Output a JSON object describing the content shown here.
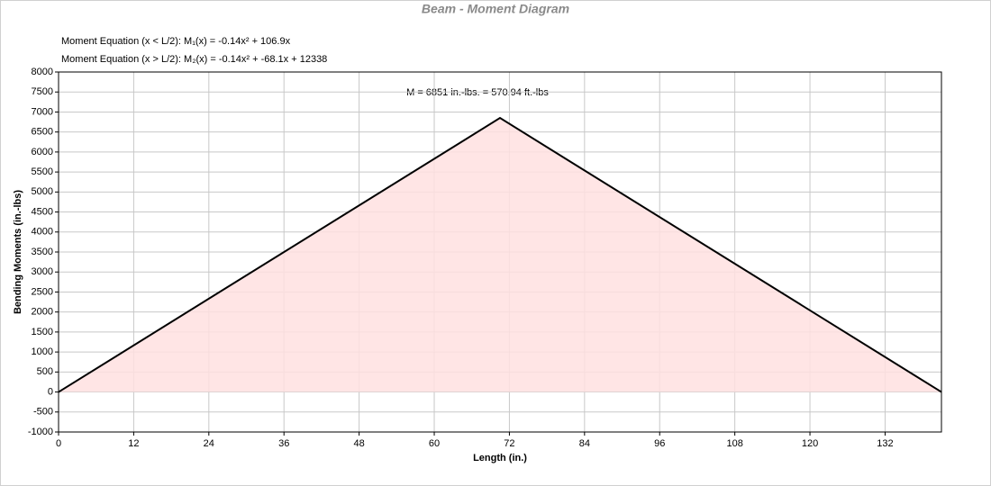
{
  "chart_data": {
    "type": "area",
    "title": "Beam - Moment Diagram",
    "annotations": [
      "Moment Equation (x < L/2):  M₁(x) = -0.14x² + 106.9x",
      "Moment Equation (x > L/2):  M₂(x) = -0.14x² + -68.1x + 12338",
      "M = 6851 in.-lbs. = 570.94 ft.-lbs"
    ],
    "x_label": "Length (in.)",
    "y_label": "Bending Moments (in.-lbs)",
    "x": [
      0,
      70.5,
      141
    ],
    "series": [
      {
        "color": "#000000",
        "fill": "#ffe0e0",
        "values": [
          0,
          6851,
          0
        ]
      }
    ],
    "xlim": [
      0,
      141
    ],
    "xticks": [
      0,
      12,
      24,
      36,
      48,
      60,
      72,
      84,
      96,
      108,
      120,
      132
    ],
    "ylim": [
      -1000,
      8000
    ],
    "yticks": [
      -1000,
      -500,
      0,
      500,
      1000,
      1500,
      2000,
      2500,
      3000,
      3500,
      4000,
      4500,
      5000,
      5500,
      6000,
      6500,
      7000,
      7500,
      8000
    ],
    "grid": true
  }
}
